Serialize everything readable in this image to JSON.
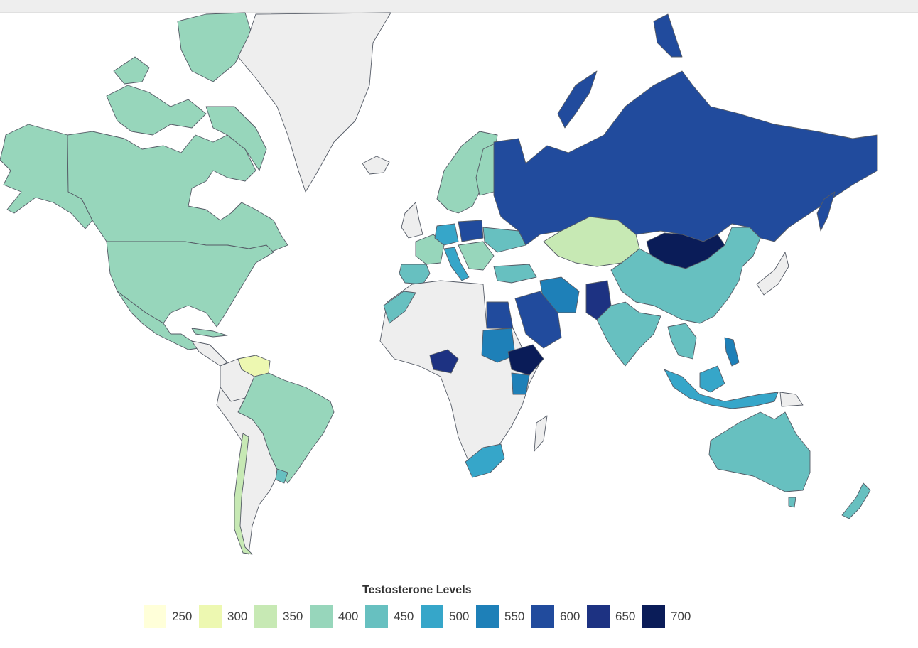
{
  "legend": {
    "title": "Testosterone Levels",
    "items": [
      {
        "label": "250",
        "color": "#ffffd9"
      },
      {
        "label": "300",
        "color": "#edf8b1"
      },
      {
        "label": "350",
        "color": "#c7e9b4"
      },
      {
        "label": "400",
        "color": "#97d6bb"
      },
      {
        "label": "450",
        "color": "#67c0c0"
      },
      {
        "label": "500",
        "color": "#36a6c9"
      },
      {
        "label": "550",
        "color": "#1e80b8"
      },
      {
        "label": "600",
        "color": "#214b9d"
      },
      {
        "label": "650",
        "color": "#1d3282"
      },
      {
        "label": "700",
        "color": "#0a1c58"
      }
    ],
    "no_data_color": "#eeeeee"
  }
}
